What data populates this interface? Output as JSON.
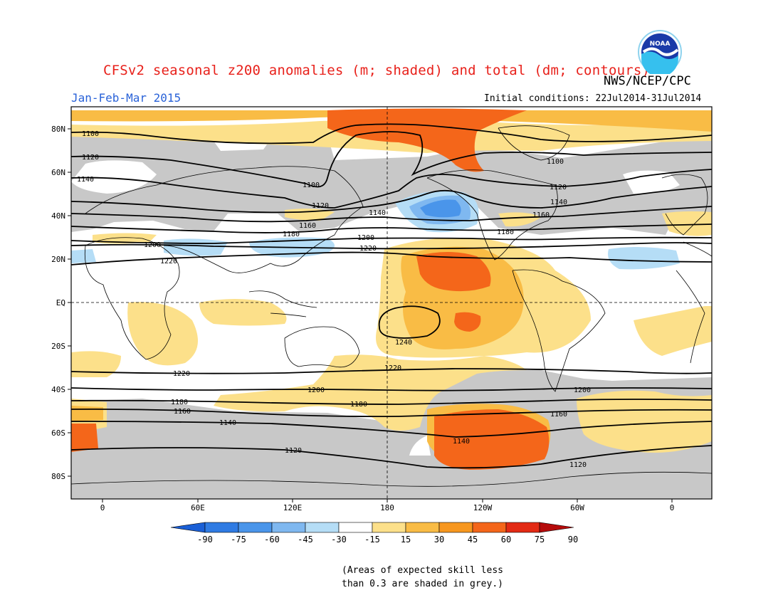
{
  "title": "CFSv2 seasonal z200 anomalies (m; shaded) and total (dm; contours)",
  "agency": "NWS/NCEP/CPC",
  "period": "Jan-Feb-Mar 2015",
  "initial_conditions": "Initial conditions: 22Jul2014-31Jul2014",
  "logo_text": "NOAA",
  "note_line1": "(Areas of expected skill less",
  "note_line2": "than 0.3 are shaded in grey.)",
  "lat_labels": [
    "80N",
    "60N",
    "40N",
    "20N",
    "EQ",
    "20S",
    "40S",
    "60S",
    "80S"
  ],
  "lon_labels": [
    "0",
    "60E",
    "120E",
    "180",
    "120W",
    "60W",
    "0"
  ],
  "colorbar": {
    "ticks": [
      "-90",
      "-75",
      "-60",
      "-45",
      "-30",
      "-15",
      "15",
      "30",
      "45",
      "60",
      "75",
      "90"
    ],
    "colors": [
      "#1a5fd6",
      "#2f7be3",
      "#4a95ea",
      "#7fb8f0",
      "#b5ddf6",
      "#ffffff",
      "#fce08a",
      "#f9bc45",
      "#f7971f",
      "#f4661a",
      "#e32a14",
      "#b50b0b"
    ],
    "grey": "#c8c8c8"
  },
  "contour_labels": [
    "1100",
    "1100",
    "1100",
    "1120",
    "1120",
    "1120",
    "1140",
    "1140",
    "1140",
    "1160",
    "1160",
    "1180",
    "1180",
    "1200",
    "1200",
    "1220",
    "1220",
    "1240",
    "1220",
    "1220",
    "1200",
    "1200",
    "1180",
    "1180",
    "1160",
    "1160",
    "1140",
    "1140",
    "1120",
    "1120"
  ]
}
